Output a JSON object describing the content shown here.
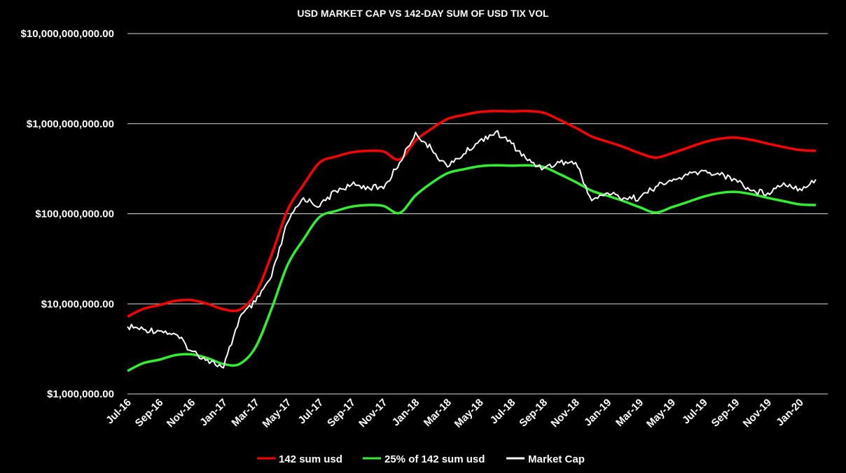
{
  "chart_data": {
    "type": "line",
    "title": "USD MARKET CAP VS 142-DAY SUM OF USD TIX VOL",
    "y_scale": "log",
    "ylim": [
      1000000,
      10000000000
    ],
    "y_ticks": [
      {
        "value": 1000000,
        "label": "$1,000,000.00"
      },
      {
        "value": 10000000,
        "label": "$10,000,000.00"
      },
      {
        "value": 100000000,
        "label": "$100,000,000.00"
      },
      {
        "value": 1000000000,
        "label": "$1,000,000,000.00"
      },
      {
        "value": 10000000000,
        "label": "$10,000,000,000.00"
      }
    ],
    "x_ticks": [
      "Jul-16",
      "Sep-16",
      "Nov-16",
      "Jan-17",
      "Mar-17",
      "May-17",
      "Jul-17",
      "Sep-17",
      "Nov-17",
      "Jan-18",
      "Mar-18",
      "May-18",
      "Jul-18",
      "Sep-18",
      "Nov-18",
      "Jan-19",
      "Mar-19",
      "May-19",
      "Jul-19",
      "Sep-19",
      "Nov-19",
      "Jan-20"
    ],
    "x": [
      "2016-07",
      "2016-08",
      "2016-09",
      "2016-10",
      "2016-11",
      "2016-12",
      "2017-01",
      "2017-02",
      "2017-03",
      "2017-04",
      "2017-05",
      "2017-06",
      "2017-07",
      "2017-08",
      "2017-09",
      "2017-10",
      "2017-11",
      "2017-12",
      "2018-01",
      "2018-02",
      "2018-03",
      "2018-04",
      "2018-05",
      "2018-06",
      "2018-07",
      "2018-08",
      "2018-09",
      "2018-10",
      "2018-11",
      "2018-12",
      "2019-01",
      "2019-02",
      "2019-03",
      "2019-04",
      "2019-05",
      "2019-06",
      "2019-07",
      "2019-08",
      "2019-09",
      "2019-10",
      "2019-11",
      "2019-12",
      "2020-01",
      "2020-02"
    ],
    "series": [
      {
        "name": "142 sum usd",
        "color": "#ff0000",
        "values": [
          7200000,
          8800000,
          9700000,
          10800000,
          11000000,
          10000000,
          8700000,
          8600000,
          13000000,
          35000000,
          110000000,
          210000000,
          370000000,
          430000000,
          480000000,
          500000000,
          490000000,
          400000000,
          650000000,
          880000000,
          1130000000,
          1250000000,
          1350000000,
          1380000000,
          1370000000,
          1380000000,
          1320000000,
          1100000000,
          900000000,
          720000000,
          630000000,
          550000000,
          470000000,
          420000000,
          470000000,
          540000000,
          620000000,
          680000000,
          700000000,
          660000000,
          600000000,
          550000000,
          510000000,
          500000000
        ]
      },
      {
        "name": "25% of 142 sum usd",
        "color": "#33ee33",
        "values": [
          1800000,
          2200000,
          2400000,
          2700000,
          2750000,
          2500000,
          2150000,
          2150000,
          3300000,
          8800000,
          27000000,
          52000000,
          92000000,
          107000000,
          120000000,
          125000000,
          122000000,
          102000000,
          160000000,
          220000000,
          282000000,
          312000000,
          337000000,
          345000000,
          342000000,
          345000000,
          330000000,
          275000000,
          225000000,
          180000000,
          158000000,
          138000000,
          118000000,
          103000000,
          118000000,
          135000000,
          155000000,
          170000000,
          175000000,
          165000000,
          150000000,
          138000000,
          127000000,
          125000000
        ]
      },
      {
        "name": "Market Cap",
        "color": "#ffffff",
        "values": [
          5600000,
          5200000,
          5000000,
          4600000,
          3000000,
          2400000,
          1950000,
          7000000,
          10500000,
          20000000,
          80000000,
          150000000,
          120000000,
          180000000,
          210000000,
          200000000,
          190000000,
          370000000,
          800000000,
          520000000,
          330000000,
          460000000,
          650000000,
          810000000,
          600000000,
          390000000,
          320000000,
          370000000,
          370000000,
          140000000,
          170000000,
          150000000,
          150000000,
          200000000,
          230000000,
          270000000,
          300000000,
          270000000,
          240000000,
          180000000,
          170000000,
          220000000,
          190000000,
          240000000
        ]
      }
    ],
    "legend_position": "bottom",
    "grid": true
  }
}
